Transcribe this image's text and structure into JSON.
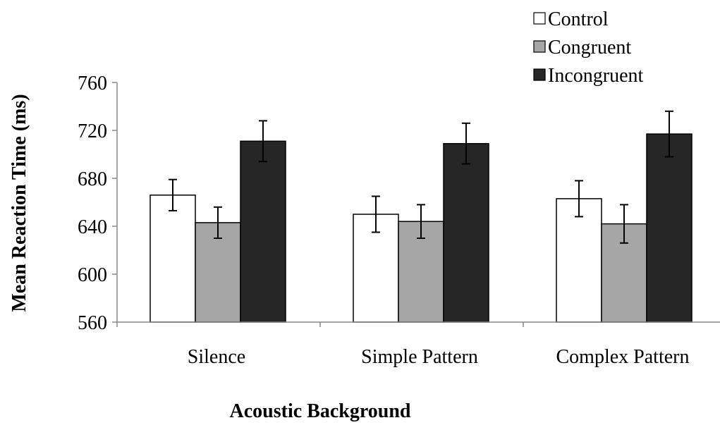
{
  "chart_data": {
    "type": "bar",
    "xlabel": "Acoustic Background",
    "ylabel": "Mean Reaction Time (ms)",
    "categories": [
      "Silence",
      "Simple Pattern",
      "Complex Pattern"
    ],
    "ylim": [
      560,
      760
    ],
    "yticks": [
      560,
      600,
      640,
      680,
      720,
      760
    ],
    "grid": false,
    "legend_position": "top-right",
    "series": [
      {
        "name": "Control",
        "color": "#ffffff",
        "values": [
          666,
          650,
          663
        ],
        "errors": [
          13,
          15,
          15
        ]
      },
      {
        "name": "Congruent",
        "color": "#a6a6a6",
        "values": [
          643,
          644,
          642
        ],
        "errors": [
          13,
          14,
          16
        ]
      },
      {
        "name": "Incongruent",
        "color": "#262626",
        "values": [
          711,
          709,
          717
        ],
        "errors": [
          17,
          17,
          19
        ]
      }
    ]
  }
}
